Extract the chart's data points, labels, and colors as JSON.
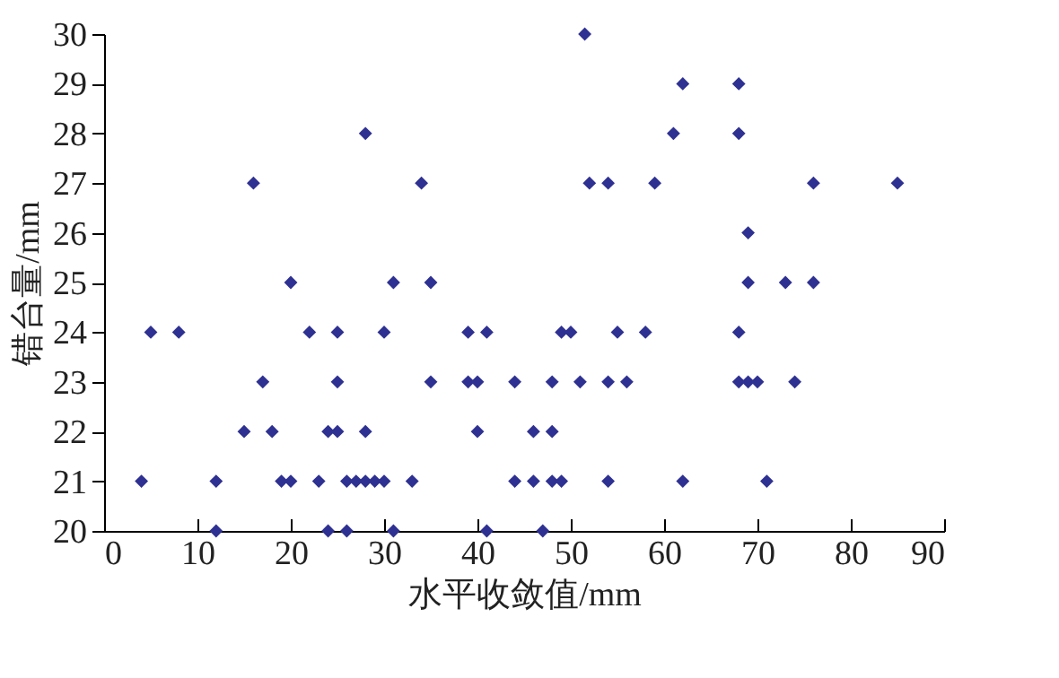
{
  "chart_data": {
    "type": "scatter",
    "xlabel": "水平收敛值/mm",
    "ylabel": "错台量/mm",
    "xlim": [
      0,
      90
    ],
    "xticks": [
      0,
      10,
      20,
      30,
      40,
      50,
      60,
      70,
      80,
      90
    ],
    "ylim": [
      20,
      30
    ],
    "yticks": [
      20,
      21,
      22,
      23,
      24,
      25,
      26,
      27,
      28,
      29,
      30
    ],
    "grid": false,
    "marker": "diamond",
    "series": [
      {
        "color": "#2e3192",
        "x": [
          51.5,
          62,
          68,
          28,
          61,
          68,
          16,
          34,
          52,
          54,
          59,
          76,
          85,
          69,
          20,
          31,
          35,
          69,
          73,
          76,
          5,
          8,
          22,
          25,
          30,
          39,
          41,
          49,
          50,
          55,
          58,
          68,
          17,
          25,
          35,
          39,
          40,
          44,
          48,
          51,
          54,
          56,
          68,
          69,
          70,
          74,
          15,
          18,
          24,
          25,
          28,
          40,
          46,
          48,
          4,
          12,
          19,
          20,
          23,
          26,
          27,
          28,
          29,
          30,
          33,
          44,
          46,
          48,
          49,
          54,
          62,
          71,
          12,
          24,
          26,
          31,
          41,
          47
        ],
        "values": [
          30,
          29,
          29,
          28,
          28,
          28,
          27,
          27,
          27,
          27,
          27,
          27,
          27,
          26,
          25,
          25,
          25,
          25,
          25,
          25,
          24,
          24,
          24,
          24,
          24,
          24,
          24,
          24,
          24,
          24,
          24,
          24,
          23,
          23,
          23,
          23,
          23,
          23,
          23,
          23,
          23,
          23,
          23,
          23,
          23,
          23,
          22,
          22,
          22,
          22,
          22,
          22,
          22,
          22,
          21,
          21,
          21,
          21,
          21,
          21,
          21,
          21,
          21,
          21,
          21,
          21,
          21,
          21,
          21,
          21,
          21,
          21,
          20,
          20,
          20,
          20,
          20,
          20
        ]
      }
    ]
  }
}
